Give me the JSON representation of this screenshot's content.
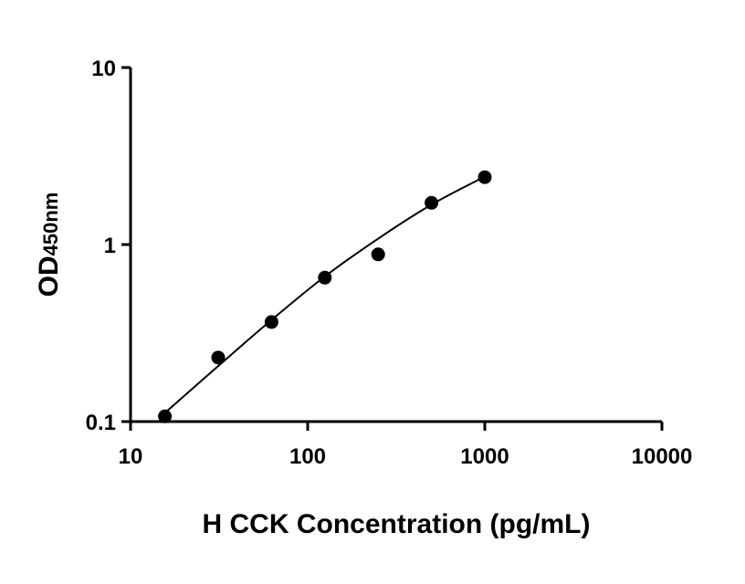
{
  "chart_data": {
    "type": "scatter",
    "x_scale": "log",
    "y_scale": "log",
    "xlim": [
      10,
      10000
    ],
    "ylim": [
      0.1,
      10
    ],
    "x_ticks": [
      {
        "value": 10,
        "label": "10"
      },
      {
        "value": 100,
        "label": "100"
      },
      {
        "value": 1000,
        "label": "1000"
      },
      {
        "value": 10000,
        "label": "10000"
      }
    ],
    "y_ticks": [
      {
        "value": 0.1,
        "label": "0.1"
      },
      {
        "value": 1,
        "label": "1"
      },
      {
        "value": 10,
        "label": "10"
      }
    ],
    "xlabel": "H CCK Concentration (pg/mL)",
    "ylabel_main": "OD",
    "ylabel_sub": "450nm",
    "grid": false,
    "series": [
      {
        "points": [
          {
            "x": 15.625,
            "y": 0.107
          },
          {
            "x": 31.25,
            "y": 0.23
          },
          {
            "x": 62.5,
            "y": 0.365
          },
          {
            "x": 125,
            "y": 0.65
          },
          {
            "x": 250,
            "y": 0.88
          },
          {
            "x": 500,
            "y": 1.72
          },
          {
            "x": 1000,
            "y": 2.4
          }
        ],
        "marker": "circle",
        "color": "#000000"
      }
    ],
    "fit_curve": {
      "type": "smooth",
      "points": [
        {
          "x": 15.625,
          "y": 0.112
        },
        {
          "x": 31.25,
          "y": 0.206
        },
        {
          "x": 62.5,
          "y": 0.375
        },
        {
          "x": 125,
          "y": 0.66
        },
        {
          "x": 250,
          "y": 1.08
        },
        {
          "x": 500,
          "y": 1.68
        },
        {
          "x": 1000,
          "y": 2.42
        }
      ],
      "color": "#000000"
    }
  }
}
